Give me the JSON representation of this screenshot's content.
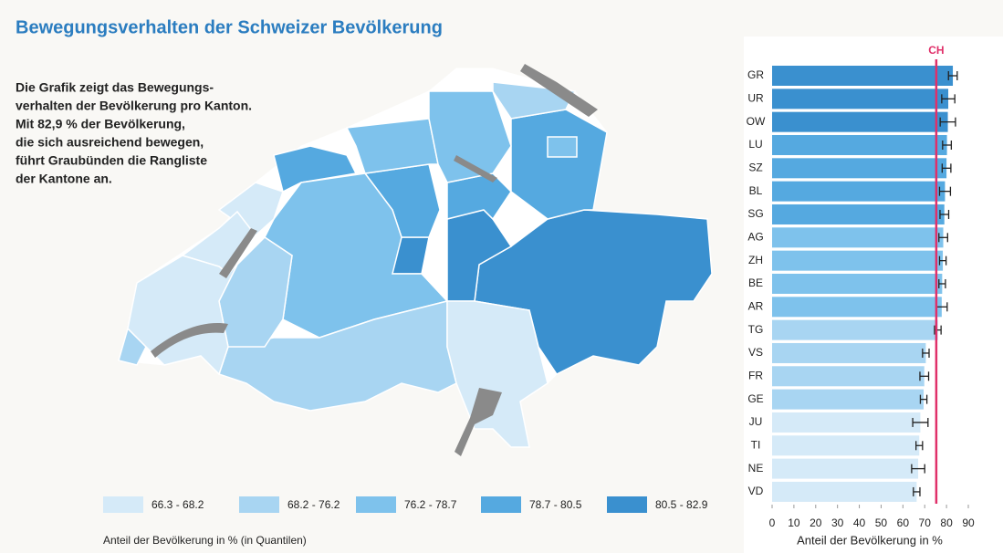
{
  "title": "Bewegungsverhalten der Schweizer Bevölkerung",
  "intro": [
    "Die Grafik zeigt das Bewegungs-",
    "verhalten der Bevölkerung pro Kanton.",
    "Mit 82,9 % der Bevölkerung,",
    "die sich ausreichend bewegen,",
    "führt Graubünden die Rangliste",
    "der Kantone an."
  ],
  "map": {
    "legend_title": "Anteil der Bevölkerung in % (in Quantilen)",
    "classes": [
      {
        "label": "66.3 - 68.2",
        "min": 66.3,
        "max": 68.2,
        "color": "#d5eaf8"
      },
      {
        "label": "68.2 - 76.2",
        "min": 68.2,
        "max": 76.2,
        "color": "#a8d5f2"
      },
      {
        "label": "76.2 - 78.7",
        "min": 76.2,
        "max": 78.7,
        "color": "#7ec2ec"
      },
      {
        "label": "78.7 - 80.5",
        "min": 78.7,
        "max": 80.5,
        "color": "#55a9e0"
      },
      {
        "label": "80.5 - 82.9",
        "min": 80.5,
        "max": 82.9,
        "color": "#3a90cf"
      }
    ]
  },
  "chart_data": {
    "type": "hbar",
    "categories": [
      "GR",
      "UR",
      "OW",
      "LU",
      "SZ",
      "BL",
      "SG",
      "AG",
      "ZH",
      "BE",
      "AR",
      "TG",
      "VS",
      "FR",
      "GE",
      "JU",
      "TI",
      "NE",
      "VD"
    ],
    "values": [
      82.9,
      80.8,
      80.6,
      80.2,
      80.0,
      79.3,
      79.0,
      78.5,
      78.3,
      78.0,
      77.8,
      76.0,
      70.5,
      69.8,
      69.5,
      68.0,
      67.5,
      67.0,
      66.3
    ],
    "errors": [
      2,
      3,
      3.5,
      2,
      2,
      2.5,
      2,
      2,
      1.5,
      1.5,
      2.5,
      1.5,
      1.5,
      2,
      1.5,
      3.5,
      1.5,
      3,
      1.5
    ],
    "reference": {
      "label": "CH",
      "value": 75.3,
      "color": "#e0306a"
    },
    "xlim": [
      0,
      90
    ],
    "xticks": [
      0,
      10,
      20,
      30,
      40,
      50,
      60,
      70,
      80,
      90
    ],
    "xlabel": "Anteil der Bevölkerung in %"
  }
}
